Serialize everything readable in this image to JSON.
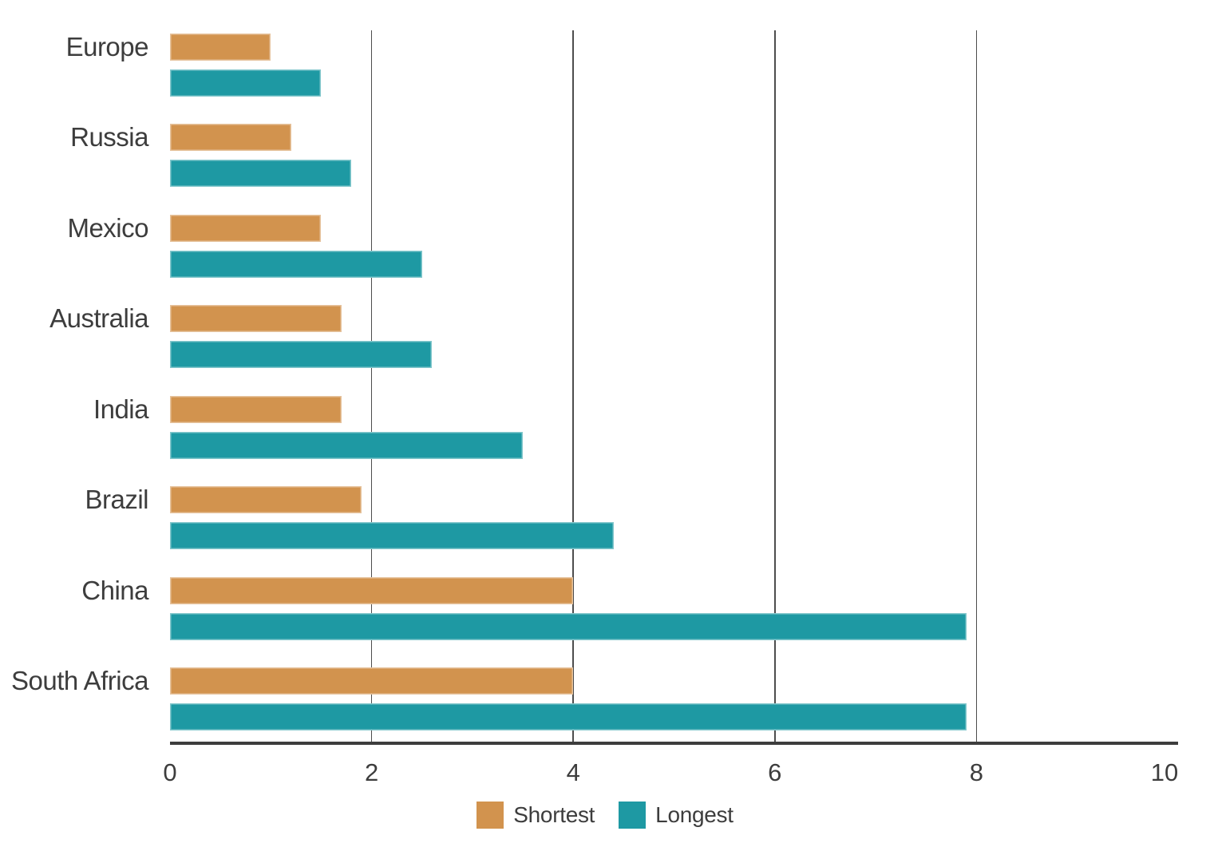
{
  "chart_data": {
    "type": "bar",
    "orientation": "horizontal",
    "title": "",
    "xlabel": "",
    "ylabel": "",
    "categories": [
      "Europe",
      "Russia",
      "Mexico",
      "Australia",
      "India",
      "Brazil",
      "China",
      "South Africa"
    ],
    "series": [
      {
        "name": "Shortest",
        "color": "#d2934e",
        "values": [
          1.0,
          1.2,
          1.5,
          1.7,
          1.7,
          1.9,
          4.0,
          4.0
        ]
      },
      {
        "name": "Longest",
        "color": "#1e99a3",
        "values": [
          1.5,
          1.8,
          2.5,
          2.6,
          3.5,
          4.4,
          7.9,
          7.9
        ]
      }
    ],
    "xlim": [
      0,
      10
    ],
    "x_ticks": [
      0,
      2,
      4,
      6,
      8,
      10
    ],
    "gridlines_at": [
      2,
      4,
      6,
      8
    ],
    "legend_position": "bottom-center",
    "legend_entries": [
      "Shortest",
      "Longest"
    ]
  },
  "colors": {
    "background": "#ffffff",
    "text": "#3d3d3d",
    "axis": "#3d3d3d",
    "gridline": "#4d4d4d",
    "shortest": "#d2934e",
    "longest": "#1e99a3"
  }
}
